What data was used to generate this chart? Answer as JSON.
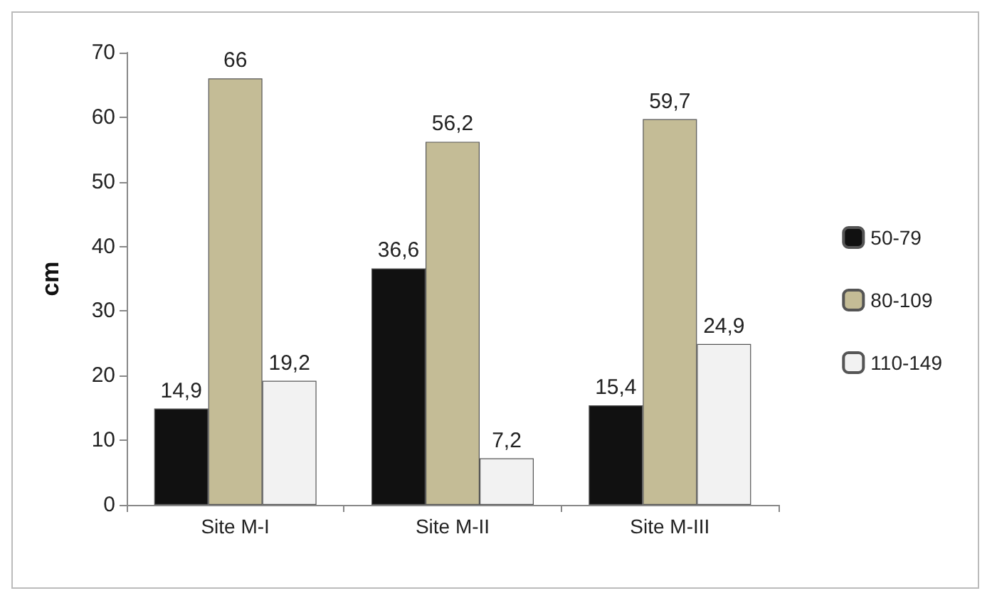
{
  "chart_data": {
    "type": "bar",
    "ylabel": "cm",
    "categories": [
      "Site M-I",
      "Site M-II",
      "Site M-III"
    ],
    "series": [
      {
        "name": "50-79",
        "color": "#111111",
        "values": [
          14.9,
          36.6,
          15.4
        ],
        "value_labels": [
          "14,9",
          "36,6",
          "15,4"
        ]
      },
      {
        "name": "80-109",
        "color": "#c4bc96",
        "values": [
          66,
          56.2,
          59.7
        ],
        "value_labels": [
          "66",
          "56,2",
          "59,7"
        ]
      },
      {
        "name": "110-149",
        "color": "#f2f2f2",
        "values": [
          19.2,
          7.2,
          24.9
        ],
        "value_labels": [
          "19,2",
          "7,2",
          "24,9"
        ]
      }
    ],
    "ylim": [
      0,
      70
    ],
    "yticks": [
      0,
      10,
      20,
      30,
      40,
      50,
      60,
      70
    ],
    "grid": false,
    "legend": "right"
  }
}
